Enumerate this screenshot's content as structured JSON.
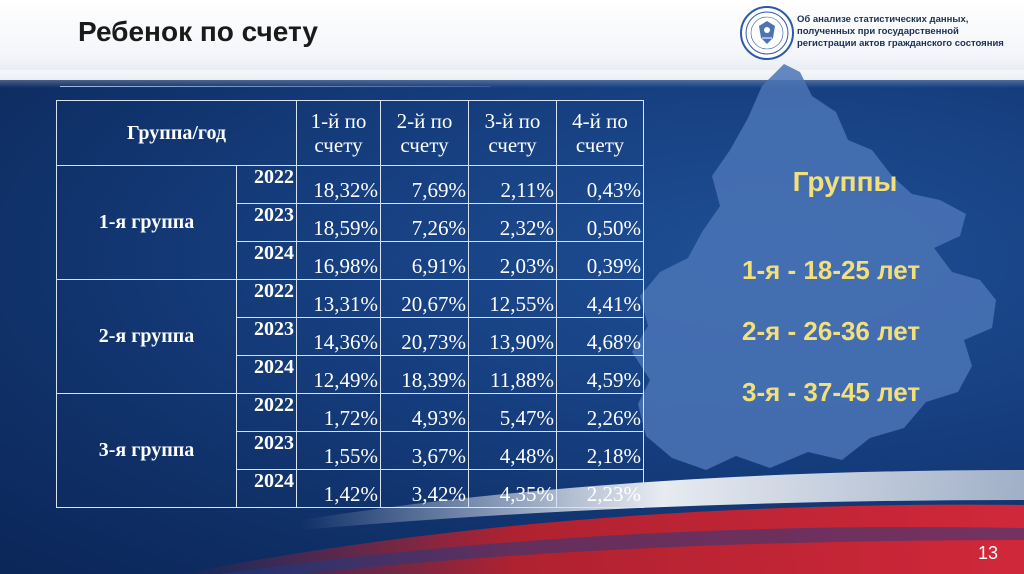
{
  "header": {
    "title": "Ребенок по счету",
    "department_text": "Об анализе статистических данных, полученных при государственной регистрации актов гражданского состояния"
  },
  "table": {
    "corner_label": "Группа/год",
    "columns": [
      "1-й по счету",
      "2-й по счету",
      "3-й по счету",
      "4-й по счету"
    ],
    "groups": [
      {
        "name": "1-я группа",
        "rows": [
          {
            "year": "2022",
            "values": [
              "18,32%",
              "7,69%",
              "2,11%",
              "0,43%"
            ]
          },
          {
            "year": "2023",
            "values": [
              "18,59%",
              "7,26%",
              "2,32%",
              "0,50%"
            ]
          },
          {
            "year": "2024",
            "values": [
              "16,98%",
              "6,91%",
              "2,03%",
              "0,39%"
            ]
          }
        ]
      },
      {
        "name": "2-я группа",
        "rows": [
          {
            "year": "2022",
            "values": [
              "13,31%",
              "20,67%",
              "12,55%",
              "4,41%"
            ]
          },
          {
            "year": "2023",
            "values": [
              "14,36%",
              "20,73%",
              "13,90%",
              "4,68%"
            ]
          },
          {
            "year": "2024",
            "values": [
              "12,49%",
              "18,39%",
              "11,88%",
              "4,59%"
            ]
          }
        ]
      },
      {
        "name": "3-я группа",
        "rows": [
          {
            "year": "2022",
            "values": [
              "1,72%",
              "4,93%",
              "5,47%",
              "2,26%"
            ]
          },
          {
            "year": "2023",
            "values": [
              "1,55%",
              "3,67%",
              "4,48%",
              "2,18%"
            ]
          },
          {
            "year": "2024",
            "values": [
              "1,42%",
              "3,42%",
              "4,35%",
              "2,23%"
            ]
          }
        ]
      }
    ]
  },
  "legend": {
    "title": "Группы",
    "items": [
      "1-я - 18-25 лет",
      "2-я - 26-36 лет",
      "3-я - 37-45 лет"
    ]
  },
  "slide_number": "13",
  "colors": {
    "background": "#163f80",
    "accent_yellow": "#f3e07b",
    "map_fill": "#4a74b6"
  }
}
